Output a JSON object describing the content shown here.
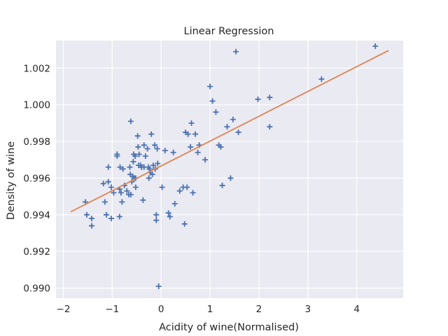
{
  "chart_data": {
    "type": "scatter",
    "title": "Linear Regression",
    "xlabel": "Acidity of wine(Normalised)",
    "ylabel": "Density of wine",
    "xlim": [
      -2.15,
      4.95
    ],
    "ylim": [
      0.98945,
      1.0035
    ],
    "xticks": [
      -2,
      -1,
      0,
      1,
      2,
      3,
      4
    ],
    "xtick_labels": [
      "−2",
      "−1",
      "0",
      "1",
      "2",
      "3",
      "4"
    ],
    "yticks": [
      0.99,
      0.992,
      0.994,
      0.996,
      0.998,
      1.0,
      1.002
    ],
    "ytick_labels": [
      "0.990",
      "0.992",
      "0.994",
      "0.996",
      "0.998",
      "1.000",
      "1.002"
    ],
    "grid": true,
    "colors": {
      "background": "#eaeaf2",
      "grid": "#ffffff",
      "points": "#4c72b0",
      "line": "#dd8452"
    },
    "series": [
      {
        "type": "scatter",
        "marker": "plus",
        "points": [
          [
            -1.55,
            0.9947
          ],
          [
            -1.52,
            0.994
          ],
          [
            -1.42,
            0.9938
          ],
          [
            -1.42,
            0.9934
          ],
          [
            -1.18,
            0.9957
          ],
          [
            -1.15,
            0.9947
          ],
          [
            -1.12,
            0.994
          ],
          [
            -1.08,
            0.9958
          ],
          [
            -1.08,
            0.9966
          ],
          [
            -1.02,
            0.9955
          ],
          [
            -1.02,
            0.9938
          ],
          [
            -0.97,
            0.9952
          ],
          [
            -0.9,
            0.9973
          ],
          [
            -0.9,
            0.9972
          ],
          [
            -0.85,
            0.9954
          ],
          [
            -0.85,
            0.9939
          ],
          [
            -0.84,
            0.9966
          ],
          [
            -0.82,
            0.9952
          ],
          [
            -0.8,
            0.9947
          ],
          [
            -0.78,
            0.9965
          ],
          [
            -0.75,
            0.9956
          ],
          [
            -0.7,
            0.9953
          ],
          [
            -0.66,
            0.9951
          ],
          [
            -0.64,
            0.9966
          ],
          [
            -0.63,
            0.9962
          ],
          [
            -0.62,
            0.9991
          ],
          [
            -0.62,
            0.9951
          ],
          [
            -0.6,
            0.9958
          ],
          [
            -0.58,
            0.9961
          ],
          [
            -0.57,
            0.9969
          ],
          [
            -0.56,
            0.9973
          ],
          [
            -0.55,
            0.996
          ],
          [
            -0.53,
            0.9972
          ],
          [
            -0.52,
            0.9955
          ],
          [
            -0.52,
            0.996
          ],
          [
            -0.48,
            0.9983
          ],
          [
            -0.47,
            0.9977
          ],
          [
            -0.46,
            0.9967
          ],
          [
            -0.45,
            0.9973
          ],
          [
            -0.42,
            0.9967
          ],
          [
            -0.4,
            0.9966
          ],
          [
            -0.37,
            0.9948
          ],
          [
            -0.35,
            0.9978
          ],
          [
            -0.35,
            0.9966
          ],
          [
            -0.32,
            0.9972
          ],
          [
            -0.28,
            0.9976
          ],
          [
            -0.26,
            0.9966
          ],
          [
            -0.25,
            0.996
          ],
          [
            -0.24,
            0.9965
          ],
          [
            -0.22,
            0.9963
          ],
          [
            -0.2,
            0.9984
          ],
          [
            -0.18,
            0.9962
          ],
          [
            -0.16,
            0.9967
          ],
          [
            -0.13,
            0.9978
          ],
          [
            -0.12,
            0.9965
          ],
          [
            -0.1,
            0.994
          ],
          [
            -0.1,
            0.9937
          ],
          [
            -0.08,
            0.9976
          ],
          [
            -0.07,
            0.9968
          ],
          [
            -0.05,
            0.9901
          ],
          [
            0.02,
            0.9955
          ],
          [
            0.08,
            0.9975
          ],
          [
            0.15,
            0.9941
          ],
          [
            0.18,
            0.9939
          ],
          [
            0.25,
            0.9974
          ],
          [
            0.28,
            0.9946
          ],
          [
            0.38,
            0.9953
          ],
          [
            0.45,
            0.9955
          ],
          [
            0.48,
            0.9935
          ],
          [
            0.5,
            0.9985
          ],
          [
            0.53,
            0.9955
          ],
          [
            0.55,
            0.9984
          ],
          [
            0.6,
            0.9977
          ],
          [
            0.62,
            0.999
          ],
          [
            0.65,
            0.9952
          ],
          [
            0.7,
            0.9984
          ],
          [
            0.75,
            0.9974
          ],
          [
            0.78,
            0.9978
          ],
          [
            0.9,
            0.997
          ],
          [
            1.0,
            1.001
          ],
          [
            1.05,
            1.0002
          ],
          [
            1.12,
            0.9996
          ],
          [
            1.18,
            0.9978
          ],
          [
            1.22,
            0.9977
          ],
          [
            1.25,
            0.9956
          ],
          [
            1.35,
            0.9988
          ],
          [
            1.42,
            0.996
          ],
          [
            1.47,
            0.9992
          ],
          [
            1.53,
            1.0029
          ],
          [
            1.58,
            0.9985
          ],
          [
            1.98,
            1.0003
          ],
          [
            2.22,
            1.0004
          ],
          [
            2.22,
            0.9988
          ],
          [
            3.28,
            1.0014
          ],
          [
            4.38,
            1.0032
          ]
        ]
      },
      {
        "type": "line",
        "points": [
          [
            -1.85,
            0.99416
          ],
          [
            4.65,
            1.00296
          ]
        ]
      }
    ]
  }
}
